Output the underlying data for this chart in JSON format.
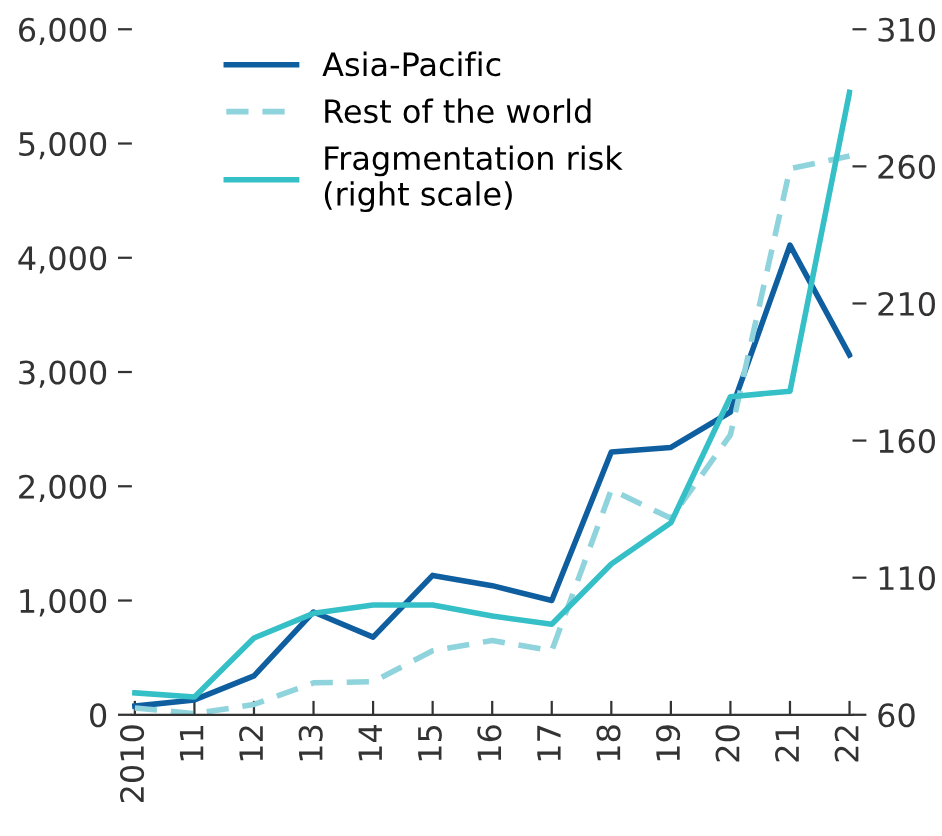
{
  "chart_data": {
    "type": "line",
    "categories": [
      "2010",
      "11",
      "12",
      "13",
      "14",
      "15",
      "16",
      "17",
      "18",
      "19",
      "20",
      "21",
      "22"
    ],
    "series": [
      {
        "name": "Asia-Pacific",
        "color": "#0f5fa0",
        "line_style": "solid",
        "values": [
          76,
          130,
          340,
          900,
          680,
          1220,
          1130,
          1000,
          2300,
          2340,
          2650,
          4110,
          3150
        ]
      },
      {
        "name": "Rest of the world",
        "color": "#8fd4dc",
        "line_style": "dashed",
        "values": [
          60,
          10,
          90,
          280,
          290,
          560,
          650,
          560,
          1970,
          1720,
          2450,
          4780,
          4890
        ]
      },
      {
        "name": "Fragmentation risk\n(right scale)",
        "color": "#35bfc6",
        "line_style": "solid",
        "axis": "y2",
        "values": [
          68,
          66.5,
          88,
          97,
          100,
          100,
          96,
          93,
          115,
          130,
          176,
          178,
          287
        ]
      }
    ],
    "ylim": [
      0,
      6000
    ],
    "yticks": [
      0,
      {
        "value": 1000,
        "label": "1,000"
      },
      {
        "value": 2000,
        "label": "2,000"
      },
      {
        "value": 3000,
        "label": "3,000"
      },
      {
        "value": 4000,
        "label": "4,000"
      },
      {
        "value": 5000,
        "label": "5,000"
      },
      {
        "value": 6000,
        "label": "6,000"
      }
    ],
    "y2lim": [
      60,
      310
    ],
    "y2ticks": [
      60,
      110,
      160,
      210,
      260,
      310
    ],
    "grid": false,
    "legend": "top left",
    "marker": "none"
  }
}
